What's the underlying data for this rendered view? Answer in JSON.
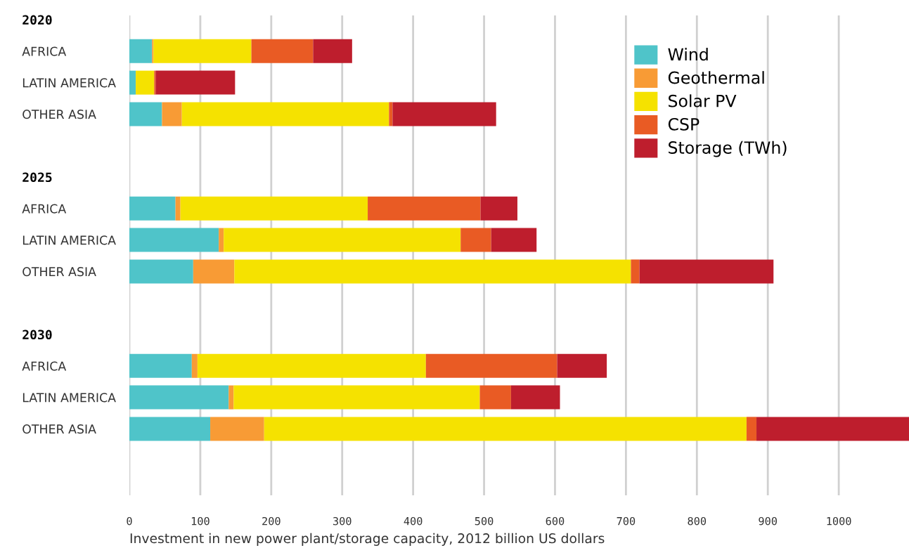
{
  "chart_data": {
    "type": "bar",
    "orientation": "horizontal",
    "stacked": true,
    "xlabel": "Investment in new power plant/storage capacity, 2012 billion US dollars",
    "categories": [
      "2020",
      "AFRICA",
      "LATIN AMERICA",
      "OTHER ASIA",
      null,
      "2025",
      "AFRICA",
      "LATIN AMERICA",
      "OTHER ASIA",
      null,
      "2030",
      "AFRICA",
      "LATIN AMERICA",
      "OTHER ASIA"
    ],
    "series": [
      {
        "name": "Wind",
        "color": "#4fc4c9",
        "values": [
          null,
          32,
          9,
          46,
          null,
          null,
          65,
          126,
          90,
          null,
          null,
          88,
          140,
          114
        ]
      },
      {
        "name": "Geothermal",
        "color": "#f89b35",
        "values": [
          null,
          2,
          0,
          28,
          null,
          null,
          7,
          7,
          58,
          null,
          null,
          8,
          7,
          76
        ]
      },
      {
        "name": "Solar PV",
        "color": "#f5e200",
        "values": [
          null,
          138,
          26,
          292,
          null,
          null,
          264,
          334,
          559,
          null,
          null,
          322,
          347,
          680
        ]
      },
      {
        "name": "CSP",
        "color": "#e95b24",
        "values": [
          null,
          87,
          2,
          5,
          null,
          null,
          159,
          43,
          12,
          null,
          null,
          185,
          44,
          14
        ]
      },
      {
        "name": "Storage (TWh)",
        "color": "#be1e2d",
        "values": [
          null,
          55,
          112,
          146,
          null,
          null,
          52,
          64,
          189,
          null,
          null,
          70,
          69,
          215
        ]
      }
    ],
    "xlim": [
      0,
      1100
    ],
    "xticks": [
      0,
      100,
      200,
      300,
      400,
      500,
      600,
      700,
      800,
      900,
      1000
    ],
    "grid": "x",
    "legend": "top right"
  }
}
